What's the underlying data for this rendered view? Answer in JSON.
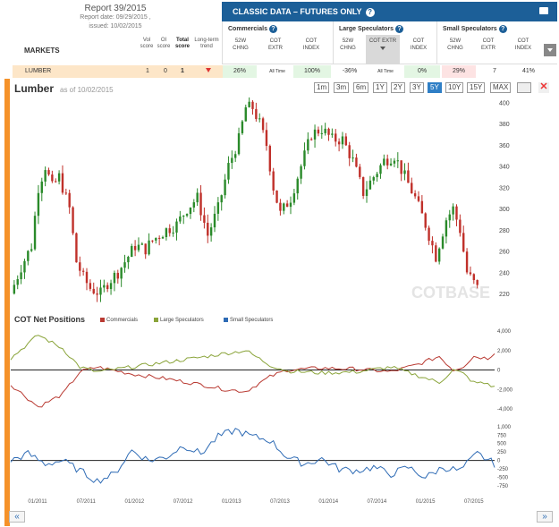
{
  "report": {
    "title": "Report 39/2015",
    "report_date": "Report date: 09/29/2015 ,",
    "issued": "issued: 10/02/2015"
  },
  "markets": {
    "label": "MARKETS",
    "col_vol": "Vol score",
    "col_oi": "OI score",
    "col_total": "Total score",
    "col_trend": "Long-term trend"
  },
  "banner": {
    "title": "CLASSIC DATA – FUTURES ONLY",
    "help": "?"
  },
  "groups": [
    {
      "name": "Commercials",
      "help": "?",
      "cols": [
        "52W CHNG",
        "COT EXTR",
        "COT INDEX"
      ]
    },
    {
      "name": "Large Speculators",
      "help": "?",
      "cols": [
        "52W CHNG",
        "COT EXTR",
        "COT INDEX"
      ]
    },
    {
      "name": "Small Speculators",
      "help": "?",
      "cols": [
        "52W CHNG",
        "COT EXTR",
        "COT INDEX"
      ]
    }
  ],
  "row": {
    "market": "LUMBER",
    "vol": "1",
    "oi": "0",
    "total": "1",
    "comm_chng": "26%",
    "comm_extr": "All Time",
    "comm_index": "100%",
    "large_chng": "-36%",
    "large_extr": "All Time",
    "large_index": "0%",
    "small_chng": "29%",
    "small_extr": "7",
    "small_index": "41%"
  },
  "chart": {
    "title": "Lumber",
    "asof": "as of 10/02/2015",
    "timeframes": [
      "1m",
      "3m",
      "6m",
      "1Y",
      "2Y",
      "3Y",
      "5Y",
      "10Y",
      "15Y",
      "MAX"
    ],
    "active": "5Y",
    "close": "✕",
    "watermark": "COTBASE"
  },
  "cot": {
    "title": "COT Net Positions",
    "legend": [
      "Commercials",
      "Large Speculators",
      "Small Speculators"
    ]
  },
  "colors": {
    "commercials": "#b93a32",
    "large": "#8aa43a",
    "small": "#2e6bb5",
    "up": "#2a8a2a",
    "down": "#c0302a",
    "accent": "#f5922a",
    "banner": "#1c5f98"
  },
  "nav": {
    "prev": "«",
    "next": "»"
  },
  "chart_data": [
    {
      "type": "candlestick",
      "title": "Lumber",
      "ylim": [
        210,
        402
      ],
      "yticks": [
        "220",
        "240",
        "260",
        "280",
        "300",
        "320",
        "340",
        "360",
        "380",
        "400"
      ],
      "xticks": [
        "01/2011",
        "07/2011",
        "01/2012",
        "07/2012",
        "01/2013",
        "07/2013",
        "01/2014",
        "07/2014",
        "01/2015",
        "07/2015"
      ],
      "close": [
        [
          0,
          220
        ],
        [
          3,
          245
        ],
        [
          6,
          265
        ],
        [
          8,
          320
        ],
        [
          10,
          340
        ],
        [
          12,
          320
        ],
        [
          14,
          330
        ],
        [
          17,
          300
        ],
        [
          19,
          250
        ],
        [
          21,
          235
        ],
        [
          23,
          225
        ],
        [
          26,
          220
        ],
        [
          28,
          230
        ],
        [
          31,
          240
        ],
        [
          33,
          250
        ],
        [
          36,
          265
        ],
        [
          39,
          262
        ],
        [
          41,
          270
        ],
        [
          45,
          280
        ],
        [
          48,
          285
        ],
        [
          51,
          300
        ],
        [
          54,
          310
        ],
        [
          57,
          275
        ],
        [
          60,
          300
        ],
        [
          63,
          340
        ],
        [
          66,
          365
        ],
        [
          68,
          395
        ],
        [
          70,
          395
        ],
        [
          72,
          380
        ],
        [
          74,
          360
        ],
        [
          76,
          320
        ],
        [
          78,
          295
        ],
        [
          81,
          310
        ],
        [
          84,
          340
        ],
        [
          87,
          370
        ],
        [
          90,
          375
        ],
        [
          93,
          365
        ],
        [
          96,
          365
        ],
        [
          99,
          345
        ],
        [
          102,
          315
        ],
        [
          105,
          330
        ],
        [
          108,
          345
        ],
        [
          111,
          350
        ],
        [
          114,
          330
        ],
        [
          117,
          310
        ],
        [
          120,
          285
        ],
        [
          123,
          255
        ],
        [
          126,
          290
        ],
        [
          128,
          300
        ],
        [
          130,
          280
        ],
        [
          132,
          240
        ],
        [
          134,
          230
        ],
        [
          135,
          225
        ]
      ]
    },
    {
      "type": "line",
      "title": "COT Net Positions",
      "ylim": [
        -4000,
        4000
      ],
      "yticks": [
        "4,000",
        "2,000",
        "0",
        "-2,000",
        "-4,000"
      ],
      "series": [
        {
          "name": "Commercials",
          "values": [
            [
              0,
              -1500
            ],
            [
              8,
              -3800
            ],
            [
              15,
              -2500
            ],
            [
              20,
              -200
            ],
            [
              25,
              300
            ],
            [
              35,
              -400
            ],
            [
              45,
              -900
            ],
            [
              55,
              -1500
            ],
            [
              62,
              -2000
            ],
            [
              68,
              -2200
            ],
            [
              75,
              -700
            ],
            [
              80,
              0
            ],
            [
              90,
              200
            ],
            [
              100,
              100
            ],
            [
              110,
              -200
            ],
            [
              118,
              600
            ],
            [
              124,
              1400
            ],
            [
              128,
              0
            ],
            [
              131,
              400
            ],
            [
              134,
              1400
            ],
            [
              138,
              1200
            ],
            [
              140,
              1800
            ]
          ]
        },
        {
          "name": "Large Speculators",
          "values": [
            [
              0,
              1200
            ],
            [
              8,
              3600
            ],
            [
              15,
              2200
            ],
            [
              20,
              300
            ],
            [
              25,
              -200
            ],
            [
              35,
              300
            ],
            [
              45,
              800
            ],
            [
              55,
              1300
            ],
            [
              62,
              1700
            ],
            [
              68,
              2000
            ],
            [
              75,
              500
            ],
            [
              80,
              -100
            ],
            [
              90,
              -300
            ],
            [
              100,
              -200
            ],
            [
              110,
              300
            ],
            [
              118,
              -600
            ],
            [
              124,
              -1300
            ],
            [
              128,
              0
            ],
            [
              131,
              -400
            ],
            [
              134,
              -1300
            ],
            [
              138,
              -1400
            ],
            [
              140,
              -1800
            ]
          ]
        }
      ]
    },
    {
      "type": "line",
      "title": "",
      "ylim": [
        -800,
        1100
      ],
      "yticks": [
        "1,000",
        "750",
        "500",
        "250",
        "0",
        "-250",
        "-500",
        "-750"
      ],
      "series": [
        {
          "name": "Small Speculators",
          "values": [
            [
              0,
              0
            ],
            [
              5,
              200
            ],
            [
              10,
              -100
            ],
            [
              15,
              0
            ],
            [
              20,
              -300
            ],
            [
              25,
              -600
            ],
            [
              30,
              -400
            ],
            [
              35,
              300
            ],
            [
              40,
              0
            ],
            [
              45,
              100
            ],
            [
              50,
              450
            ],
            [
              55,
              200
            ],
            [
              60,
              700
            ],
            [
              65,
              900
            ],
            [
              70,
              700
            ],
            [
              75,
              600
            ],
            [
              80,
              100
            ],
            [
              85,
              -100
            ],
            [
              90,
              50
            ],
            [
              95,
              -250
            ],
            [
              100,
              -300
            ],
            [
              105,
              -200
            ],
            [
              110,
              -400
            ],
            [
              115,
              -200
            ],
            [
              120,
              -500
            ],
            [
              125,
              -200
            ],
            [
              130,
              -300
            ],
            [
              135,
              200
            ],
            [
              140,
              -100
            ]
          ]
        }
      ]
    }
  ]
}
